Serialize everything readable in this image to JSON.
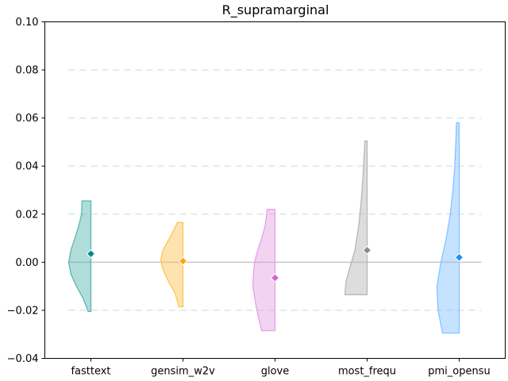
{
  "chart_data": {
    "type": "violin",
    "title": "R_supramarginal",
    "xlabel": "",
    "ylabel": "",
    "ylim": [
      -0.04,
      0.1
    ],
    "yticks": [
      "0.10",
      "0.08",
      "0.06",
      "0.04",
      "0.02",
      "0.00",
      "−0.02",
      "−0.04"
    ],
    "ytick_values": [
      0.1,
      0.08,
      0.06,
      0.04,
      0.02,
      0.0,
      -0.02,
      -0.04
    ],
    "grid_lines": [
      0.08,
      0.06,
      0.04,
      0.02,
      -0.02
    ],
    "grid": "dashed horizontal",
    "reference_line": 0.0,
    "series": [
      {
        "name": "fasttext",
        "color": "#4fb3ad",
        "marker_color": "#008b8b",
        "mean": 0.0035,
        "min": -0.0205,
        "max": 0.0255,
        "density": [
          [
            -0.0205,
            0.12
          ],
          [
            -0.015,
            0.35
          ],
          [
            -0.01,
            0.65
          ],
          [
            -0.005,
            0.9
          ],
          [
            0.0,
            1.0
          ],
          [
            0.005,
            0.9
          ],
          [
            0.01,
            0.72
          ],
          [
            0.015,
            0.55
          ],
          [
            0.02,
            0.42
          ],
          [
            0.0255,
            0.4
          ]
        ]
      },
      {
        "name": "gensim_w2v",
        "color": "#ffc04d",
        "marker_color": "#ffa500",
        "mean": 0.0005,
        "min": -0.0185,
        "max": 0.0165,
        "density": [
          [
            -0.0185,
            0.18
          ],
          [
            -0.013,
            0.35
          ],
          [
            -0.008,
            0.65
          ],
          [
            -0.003,
            0.9
          ],
          [
            0.001,
            1.0
          ],
          [
            0.005,
            0.9
          ],
          [
            0.01,
            0.6
          ],
          [
            0.0165,
            0.25
          ]
        ]
      },
      {
        "name": "glove",
        "color": "#e39de3",
        "marker_color": "#cc66cc",
        "mean": -0.0065,
        "min": -0.0285,
        "max": 0.022,
        "density": [
          [
            -0.0285,
            0.6
          ],
          [
            -0.02,
            0.82
          ],
          [
            -0.01,
            1.0
          ],
          [
            -0.005,
            0.97
          ],
          [
            0.0,
            0.92
          ],
          [
            0.005,
            0.78
          ],
          [
            0.01,
            0.6
          ],
          [
            0.015,
            0.45
          ],
          [
            0.022,
            0.35
          ]
        ]
      },
      {
        "name": "most_frequ",
        "color": "#b3b3b3",
        "marker_color": "#8c8c8c",
        "mean": 0.005,
        "min": -0.0135,
        "max": 0.0505,
        "density": [
          [
            -0.0135,
            1.0
          ],
          [
            -0.008,
            0.95
          ],
          [
            -0.003,
            0.8
          ],
          [
            0.005,
            0.55
          ],
          [
            0.015,
            0.38
          ],
          [
            0.025,
            0.27
          ],
          [
            0.035,
            0.19
          ],
          [
            0.045,
            0.13
          ],
          [
            0.0505,
            0.1
          ]
        ]
      },
      {
        "name": "pmi_opensu",
        "color": "#7fbfff",
        "marker_color": "#1e90ff",
        "mean": 0.002,
        "min": -0.0295,
        "max": 0.058,
        "density": [
          [
            -0.0295,
            0.75
          ],
          [
            -0.02,
            0.95
          ],
          [
            -0.01,
            1.0
          ],
          [
            0.0,
            0.82
          ],
          [
            0.01,
            0.58
          ],
          [
            0.02,
            0.4
          ],
          [
            0.03,
            0.28
          ],
          [
            0.04,
            0.2
          ],
          [
            0.05,
            0.15
          ],
          [
            0.058,
            0.12
          ]
        ]
      }
    ]
  }
}
